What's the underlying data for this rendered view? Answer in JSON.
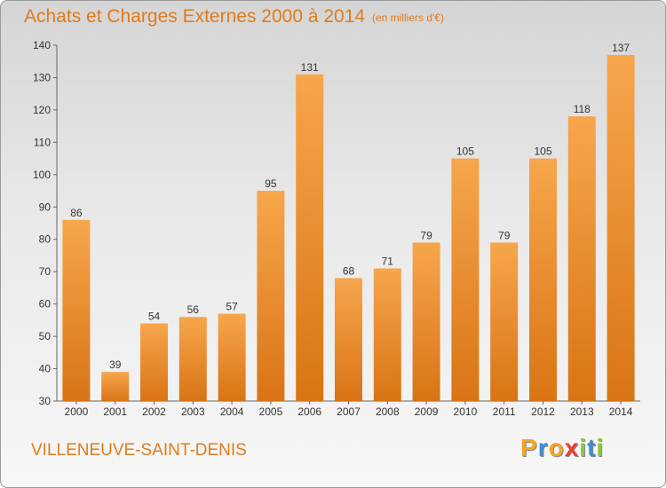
{
  "title": "Achats et Charges Externes 2000 à 2014",
  "subtitle": "(en milliers d'€)",
  "city": "VILLENEUVE-SAINT-DENIS",
  "logo": {
    "text": "Proxiti",
    "letters": [
      {
        "char": "P",
        "color": "#f5a623"
      },
      {
        "char": "r",
        "color": "#3a8fd6"
      },
      {
        "char": "o",
        "color": "#f5a623"
      },
      {
        "char": "x",
        "color": "#e8402f"
      },
      {
        "char": "i",
        "color": "#8cc63f"
      },
      {
        "char": "t",
        "color": "#3a8fd6"
      },
      {
        "char": "i",
        "color": "#8cc63f"
      }
    ]
  },
  "colors": {
    "bar_top": "#f7a64c",
    "bar_bottom": "#d97415",
    "text_accent": "#e07b1c",
    "axis": "#666666"
  },
  "chart_data": {
    "type": "bar",
    "categories": [
      "2000",
      "2001",
      "2002",
      "2003",
      "2004",
      "2005",
      "2006",
      "2007",
      "2008",
      "2009",
      "2010",
      "2011",
      "2012",
      "2013",
      "2014"
    ],
    "values": [
      86,
      39,
      54,
      56,
      57,
      95,
      131,
      68,
      71,
      79,
      105,
      79,
      105,
      118,
      137
    ],
    "ylim": [
      30,
      140
    ],
    "yticks": [
      30,
      40,
      50,
      60,
      70,
      80,
      90,
      100,
      110,
      120,
      130,
      140
    ],
    "grid": false,
    "xlabel": "",
    "ylabel": ""
  }
}
